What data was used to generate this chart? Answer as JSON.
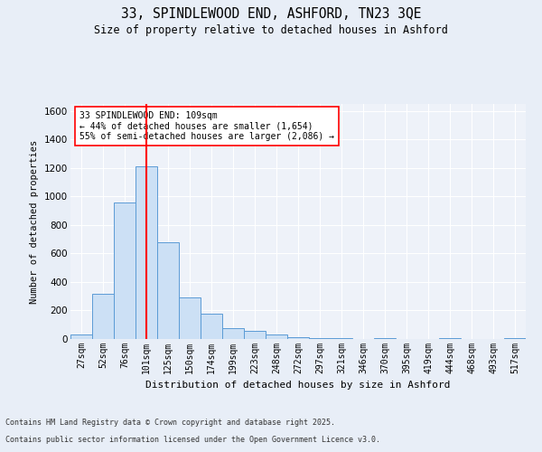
{
  "title_line1": "33, SPINDLEWOOD END, ASHFORD, TN23 3QE",
  "title_line2": "Size of property relative to detached houses in Ashford",
  "xlabel": "Distribution of detached houses by size in Ashford",
  "ylabel": "Number of detached properties",
  "categories": [
    "27sqm",
    "52sqm",
    "76sqm",
    "101sqm",
    "125sqm",
    "150sqm",
    "174sqm",
    "199sqm",
    "223sqm",
    "248sqm",
    "272sqm",
    "297sqm",
    "321sqm",
    "346sqm",
    "370sqm",
    "395sqm",
    "419sqm",
    "444sqm",
    "468sqm",
    "493sqm",
    "517sqm"
  ],
  "values": [
    30,
    315,
    960,
    1210,
    680,
    290,
    175,
    75,
    55,
    30,
    10,
    8,
    5,
    0,
    5,
    0,
    0,
    5,
    0,
    0,
    8
  ],
  "bar_color": "#cce0f5",
  "bar_edge_color": "#5b9bd5",
  "vline_color": "red",
  "annotation_text": "33 SPINDLEWOOD END: 109sqm\n← 44% of detached houses are smaller (1,654)\n55% of semi-detached houses are larger (2,086) →",
  "annotation_box_color": "white",
  "annotation_box_edge": "red",
  "ylim": [
    0,
    1650
  ],
  "yticks": [
    0,
    200,
    400,
    600,
    800,
    1000,
    1200,
    1400,
    1600
  ],
  "bg_color": "#e8eef7",
  "plot_bg_color": "#eef2f9",
  "grid_color": "white",
  "footer_line1": "Contains HM Land Registry data © Crown copyright and database right 2025.",
  "footer_line2": "Contains public sector information licensed under the Open Government Licence v3.0."
}
